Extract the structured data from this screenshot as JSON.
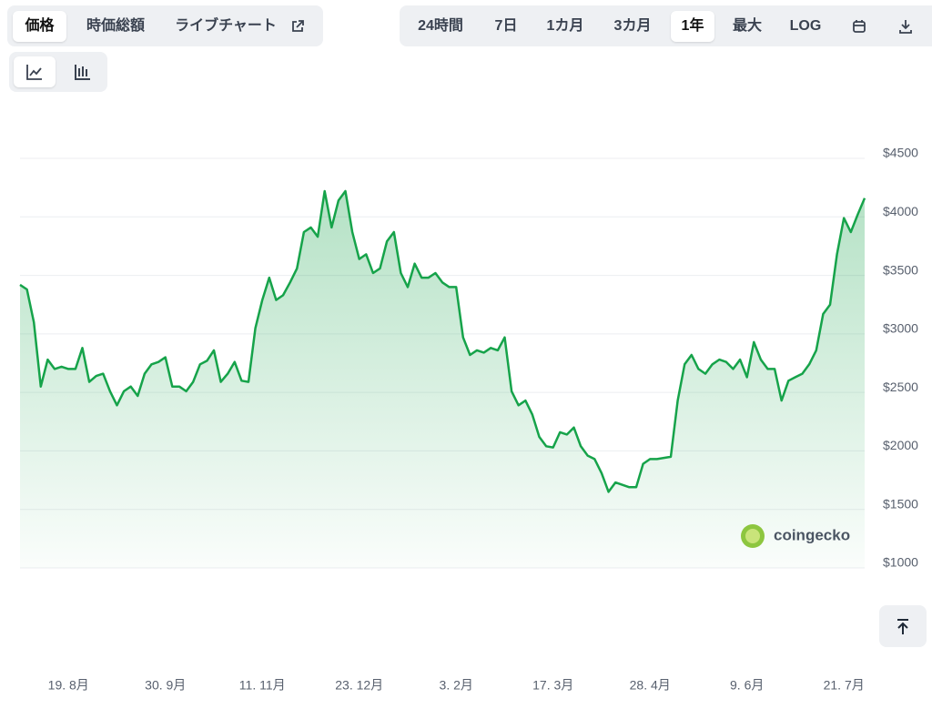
{
  "ui": {
    "tabs": [
      "価格",
      "時価総額",
      "ライブチャート"
    ],
    "ranges": [
      "24時間",
      "7日",
      "1カ月",
      "3カ月",
      "1年",
      "最大",
      "LOG"
    ],
    "watermark": "coingecko"
  },
  "chart_data": {
    "type": "area",
    "color": "#16a34a",
    "grid": true,
    "categories": [
      null,
      null,
      null,
      null,
      null,
      null,
      null,
      "19. 8月",
      null,
      null,
      null,
      null,
      null,
      null,
      null,
      null,
      null,
      null,
      null,
      null,
      null,
      "30. 9月",
      null,
      null,
      null,
      null,
      null,
      null,
      null,
      null,
      null,
      null,
      null,
      null,
      null,
      "11. 11月",
      null,
      null,
      null,
      null,
      null,
      null,
      null,
      null,
      null,
      null,
      null,
      null,
      null,
      "23. 12月",
      null,
      null,
      null,
      null,
      null,
      null,
      null,
      null,
      null,
      null,
      null,
      null,
      null,
      "3. 2月",
      null,
      null,
      null,
      null,
      null,
      null,
      null,
      null,
      null,
      null,
      null,
      null,
      null,
      "17. 3月",
      null,
      null,
      null,
      null,
      null,
      null,
      null,
      null,
      null,
      null,
      null,
      null,
      null,
      "28. 4月",
      null,
      null,
      null,
      null,
      null,
      null,
      null,
      null,
      null,
      null,
      null,
      null,
      null,
      "9. 6月",
      null,
      null,
      null,
      null,
      null,
      null,
      null,
      null,
      null,
      null,
      null,
      null,
      null,
      "21. 7月",
      null,
      null,
      null
    ],
    "values": [
      3420,
      3380,
      3100,
      2550,
      2780,
      2700,
      2720,
      2700,
      2700,
      2880,
      2590,
      2640,
      2660,
      2510,
      2390,
      2510,
      2550,
      2470,
      2660,
      2740,
      2760,
      2800,
      2550,
      2550,
      2510,
      2590,
      2740,
      2770,
      2860,
      2590,
      2660,
      2760,
      2600,
      2590,
      3050,
      3290,
      3480,
      3290,
      3330,
      3440,
      3560,
      3870,
      3910,
      3830,
      4220,
      3910,
      4140,
      4220,
      3870,
      3640,
      3680,
      3520,
      3560,
      3790,
      3870,
      3520,
      3400,
      3600,
      3480,
      3480,
      3520,
      3440,
      3400,
      3400,
      2970,
      2820,
      2860,
      2840,
      2880,
      2860,
      2970,
      2510,
      2390,
      2430,
      2310,
      2120,
      2040,
      2030,
      2160,
      2140,
      2200,
      2040,
      1960,
      1930,
      1810,
      1650,
      1730,
      1710,
      1690,
      1690,
      1890,
      1930,
      1930,
      1940,
      1950,
      2430,
      2740,
      2820,
      2700,
      2660,
      2740,
      2780,
      2760,
      2700,
      2780,
      2630,
      2930,
      2780,
      2700,
      2700,
      2430,
      2600,
      2630,
      2660,
      2740,
      2860,
      3170,
      3250,
      3680,
      3990,
      3870,
      4020,
      4160
    ],
    "ylim": [
      1000,
      4500
    ],
    "yticks": [
      {
        "value": 1000,
        "label": "$1000"
      },
      {
        "value": 1500,
        "label": "$1500"
      },
      {
        "value": 2000,
        "label": "$2000"
      },
      {
        "value": 2500,
        "label": "$2500"
      },
      {
        "value": 3000,
        "label": "$3000"
      },
      {
        "value": 3500,
        "label": "$3500"
      },
      {
        "value": 4000,
        "label": "$4000"
      },
      {
        "value": 4500,
        "label": "$4500"
      }
    ]
  }
}
